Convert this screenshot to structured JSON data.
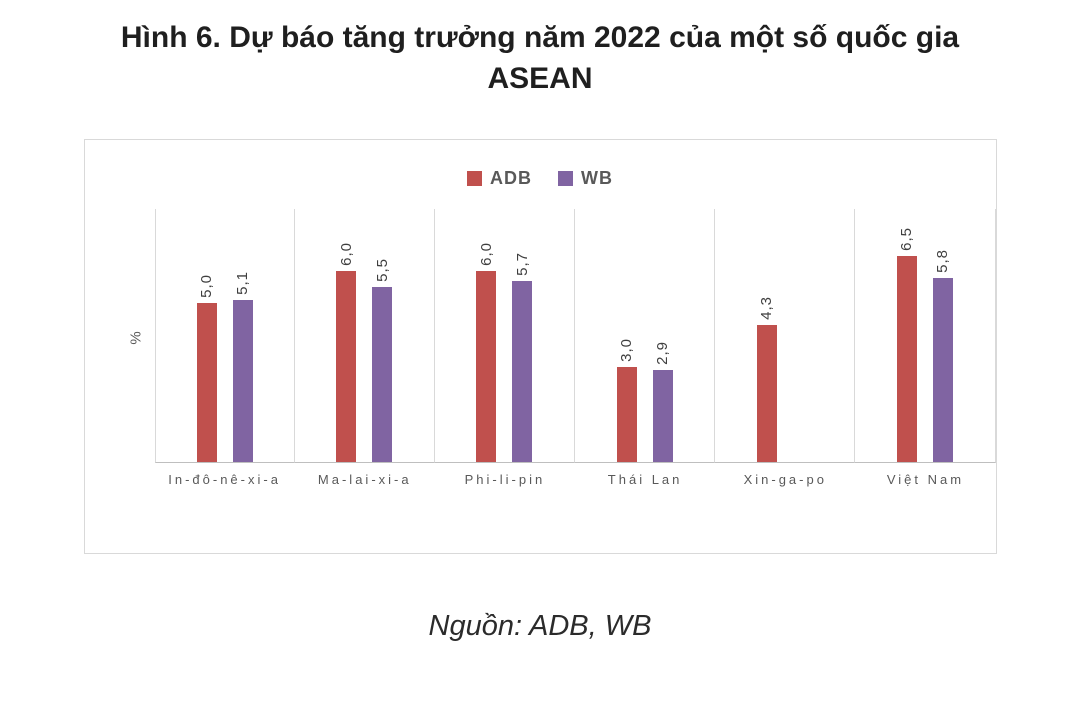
{
  "title": "Hình 6. Dự báo tăng trưởng năm 2022 của một số quốc gia ASEAN",
  "source": "Nguồn: ADB, WB",
  "chart_data": {
    "type": "bar",
    "title": "Hình 6. Dự báo tăng trưởng năm 2022 của một số quốc gia ASEAN",
    "xlabel": "",
    "ylabel": "%",
    "ylim": [
      0,
      8
    ],
    "grid": "vertical-separators",
    "legend_position": "top",
    "categories": [
      "In-đô-nê-xi-a",
      "Ma-lai-xi-a",
      "Phi-li-pin",
      "Thái Lan",
      "Xin-ga-po",
      "Việt Nam"
    ],
    "series": [
      {
        "name": "ADB",
        "color": "#c0504d",
        "values": [
          5.0,
          6.0,
          6.0,
          3.0,
          4.3,
          6.5
        ],
        "labels": [
          "5,0",
          "6,0",
          "6,0",
          "3,0",
          "4,3",
          "6,5"
        ]
      },
      {
        "name": "WB",
        "color": "#8064a2",
        "values": [
          5.1,
          5.5,
          5.7,
          2.9,
          null,
          5.8
        ],
        "labels": [
          "5,1",
          "5,5",
          "5,7",
          "2,9",
          null,
          "5,8"
        ]
      }
    ]
  }
}
